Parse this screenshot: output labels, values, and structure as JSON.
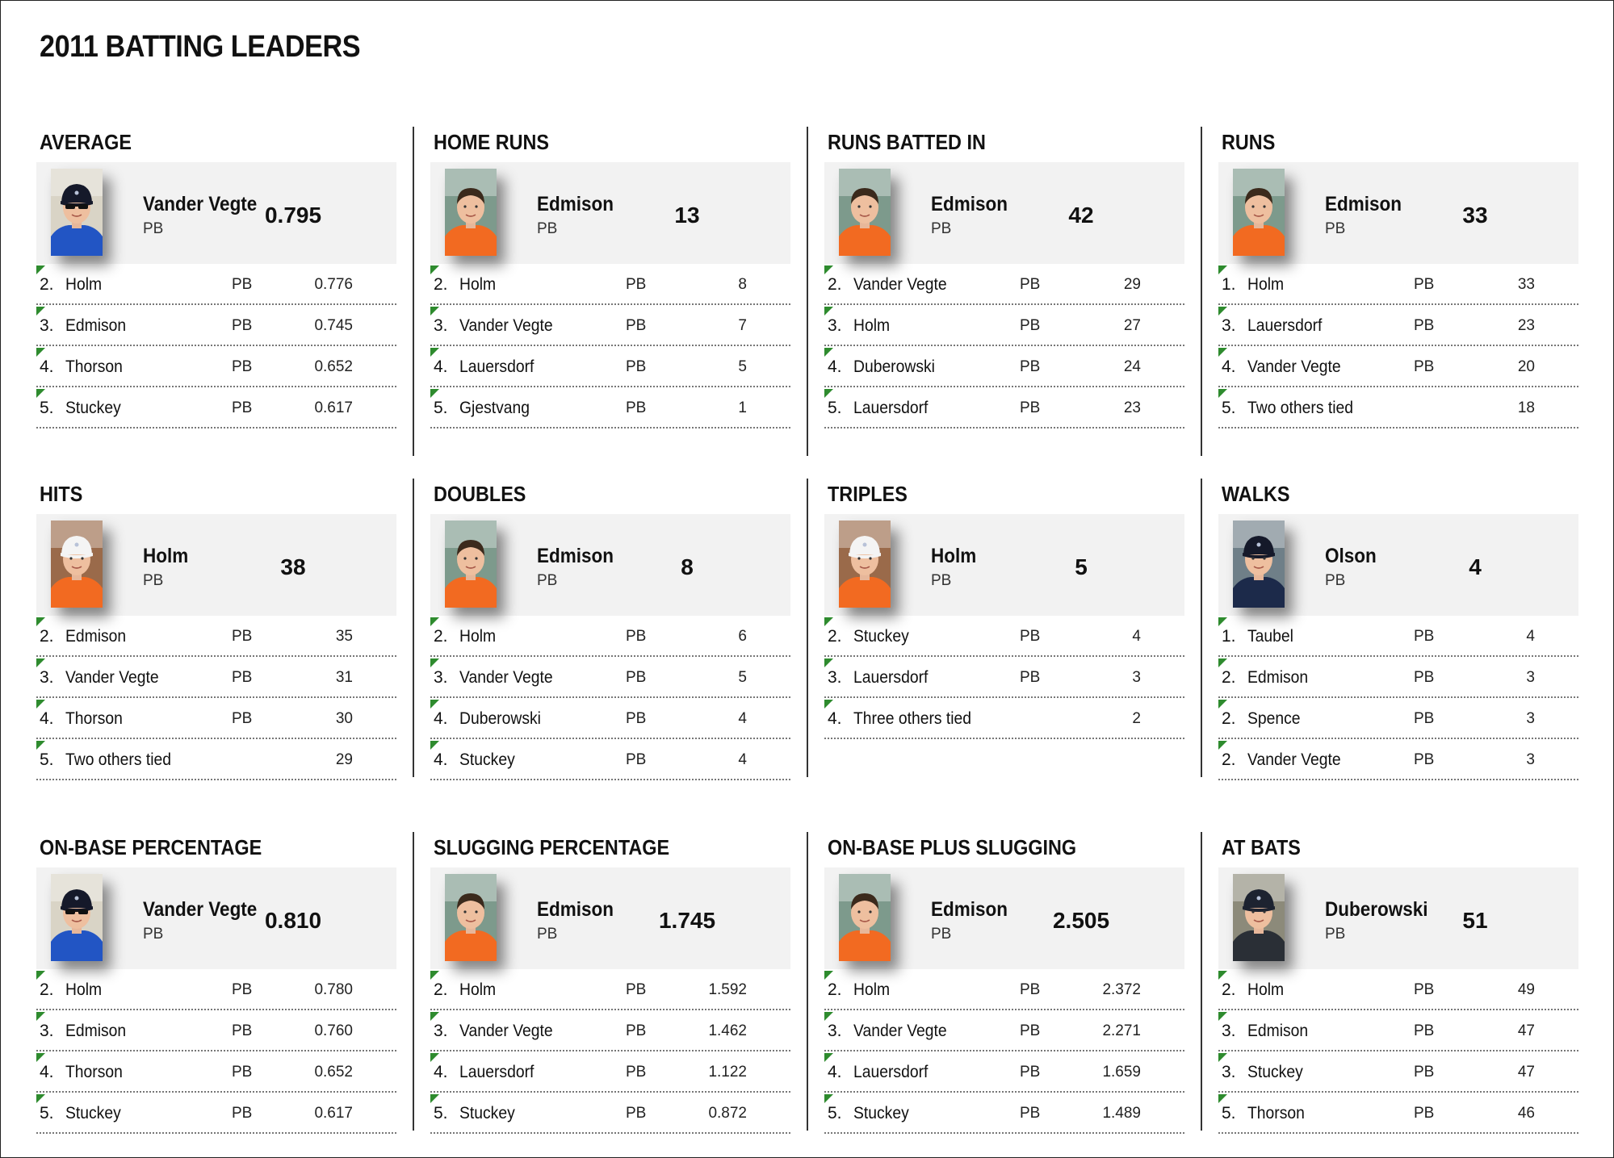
{
  "title": "2011 BATTING LEADERS",
  "categories": [
    {
      "title": "AVERAGE",
      "leader": {
        "name": "Vander Vegte",
        "team": "PB",
        "value": "0.795",
        "photo": "dark-cap-sunglasses-blue-shirt"
      },
      "rows": [
        {
          "rank": "2.",
          "name": "Holm",
          "team": "PB",
          "value": "0.776"
        },
        {
          "rank": "3.",
          "name": "Edmison",
          "team": "PB",
          "value": "0.745"
        },
        {
          "rank": "4.",
          "name": "Thorson",
          "team": "PB",
          "value": "0.652"
        },
        {
          "rank": "5.",
          "name": "Stuckey",
          "team": "PB",
          "value": "0.617"
        }
      ]
    },
    {
      "title": "HOME RUNS",
      "leader": {
        "name": "Edmison",
        "team": "PB",
        "value": "13",
        "photo": "bare-head-orange-shirt"
      },
      "rows": [
        {
          "rank": "2.",
          "name": "Holm",
          "team": "PB",
          "value": "8"
        },
        {
          "rank": "3.",
          "name": "Vander Vegte",
          "team": "PB",
          "value": "7"
        },
        {
          "rank": "4.",
          "name": "Lauersdorf",
          "team": "PB",
          "value": "5"
        },
        {
          "rank": "5.",
          "name": "Gjestvang",
          "team": "PB",
          "value": "1"
        }
      ]
    },
    {
      "title": "RUNS BATTED IN",
      "leader": {
        "name": "Edmison",
        "team": "PB",
        "value": "42",
        "photo": "bare-head-orange-shirt"
      },
      "rows": [
        {
          "rank": "2.",
          "name": "Vander Vegte",
          "team": "PB",
          "value": "29"
        },
        {
          "rank": "3.",
          "name": "Holm",
          "team": "PB",
          "value": "27"
        },
        {
          "rank": "4.",
          "name": "Duberowski",
          "team": "PB",
          "value": "24"
        },
        {
          "rank": "5.",
          "name": "Lauersdorf",
          "team": "PB",
          "value": "23"
        }
      ]
    },
    {
      "title": "RUNS",
      "leader": {
        "name": "Edmison",
        "team": "PB",
        "value": "33",
        "photo": "bare-head-orange-shirt"
      },
      "rows": [
        {
          "rank": "1.",
          "name": "Holm",
          "team": "PB",
          "value": "33"
        },
        {
          "rank": "3.",
          "name": "Lauersdorf",
          "team": "PB",
          "value": "23"
        },
        {
          "rank": "4.",
          "name": "Vander Vegte",
          "team": "PB",
          "value": "20"
        },
        {
          "rank": "5.",
          "name": "Two others tied",
          "team": "",
          "value": "18"
        }
      ]
    },
    {
      "title": "HITS",
      "leader": {
        "name": "Holm",
        "team": "PB",
        "value": "38",
        "photo": "white-cap-orange-shirt"
      },
      "rows": [
        {
          "rank": "2.",
          "name": "Edmison",
          "team": "PB",
          "value": "35"
        },
        {
          "rank": "3.",
          "name": "Vander Vegte",
          "team": "PB",
          "value": "31"
        },
        {
          "rank": "4.",
          "name": "Thorson",
          "team": "PB",
          "value": "30"
        },
        {
          "rank": "5.",
          "name": "Two others tied",
          "team": "",
          "value": "29"
        }
      ]
    },
    {
      "title": "DOUBLES",
      "leader": {
        "name": "Edmison",
        "team": "PB",
        "value": "8",
        "photo": "bare-head-orange-shirt"
      },
      "rows": [
        {
          "rank": "2.",
          "name": "Holm",
          "team": "PB",
          "value": "6"
        },
        {
          "rank": "3.",
          "name": "Vander Vegte",
          "team": "PB",
          "value": "5"
        },
        {
          "rank": "4.",
          "name": "Duberowski",
          "team": "PB",
          "value": "4"
        },
        {
          "rank": "4.",
          "name": "Stuckey",
          "team": "PB",
          "value": "4"
        }
      ]
    },
    {
      "title": "TRIPLES",
      "leader": {
        "name": "Holm",
        "team": "PB",
        "value": "5",
        "photo": "white-cap-orange-shirt"
      },
      "rows": [
        {
          "rank": "2.",
          "name": "Stuckey",
          "team": "PB",
          "value": "4"
        },
        {
          "rank": "3.",
          "name": "Lauersdorf",
          "team": "PB",
          "value": "3"
        },
        {
          "rank": "4.",
          "name": "Three others tied",
          "team": "",
          "value": "2"
        }
      ]
    },
    {
      "title": "WALKS",
      "leader": {
        "name": "Olson",
        "team": "PB",
        "value": "4",
        "photo": "dark-cap-navy-shirt"
      },
      "rows": [
        {
          "rank": "1.",
          "name": "Taubel",
          "team": "PB",
          "value": "4"
        },
        {
          "rank": "2.",
          "name": "Edmison",
          "team": "PB",
          "value": "3"
        },
        {
          "rank": "2.",
          "name": "Spence",
          "team": "PB",
          "value": "3"
        },
        {
          "rank": "2.",
          "name": "Vander Vegte",
          "team": "PB",
          "value": "3"
        }
      ]
    },
    {
      "title": "ON-BASE PERCENTAGE",
      "leader": {
        "name": "Vander Vegte",
        "team": "PB",
        "value": "0.810",
        "photo": "dark-cap-sunglasses-blue-shirt"
      },
      "rows": [
        {
          "rank": "2.",
          "name": "Holm",
          "team": "PB",
          "value": "0.780"
        },
        {
          "rank": "3.",
          "name": "Edmison",
          "team": "PB",
          "value": "0.760"
        },
        {
          "rank": "4.",
          "name": "Thorson",
          "team": "PB",
          "value": "0.652"
        },
        {
          "rank": "5.",
          "name": "Stuckey",
          "team": "PB",
          "value": "0.617"
        }
      ]
    },
    {
      "title": "SLUGGING PERCENTAGE",
      "leader": {
        "name": "Edmison",
        "team": "PB",
        "value": "1.745",
        "photo": "bare-head-orange-shirt"
      },
      "rows": [
        {
          "rank": "2.",
          "name": "Holm",
          "team": "PB",
          "value": "1.592"
        },
        {
          "rank": "3.",
          "name": "Vander Vegte",
          "team": "PB",
          "value": "1.462"
        },
        {
          "rank": "4.",
          "name": "Lauersdorf",
          "team": "PB",
          "value": "1.122"
        },
        {
          "rank": "5.",
          "name": "Stuckey",
          "team": "PB",
          "value": "0.872"
        }
      ]
    },
    {
      "title": "ON-BASE PLUS SLUGGING",
      "leader": {
        "name": "Edmison",
        "team": "PB",
        "value": "2.505",
        "photo": "bare-head-orange-shirt"
      },
      "rows": [
        {
          "rank": "2.",
          "name": "Holm",
          "team": "PB",
          "value": "2.372"
        },
        {
          "rank": "3.",
          "name": "Vander Vegte",
          "team": "PB",
          "value": "2.271"
        },
        {
          "rank": "4.",
          "name": "Lauersdorf",
          "team": "PB",
          "value": "1.659"
        },
        {
          "rank": "5.",
          "name": "Stuckey",
          "team": "PB",
          "value": "1.489"
        }
      ]
    },
    {
      "title": "AT BATS",
      "leader": {
        "name": "Duberowski",
        "team": "PB",
        "value": "51",
        "photo": "dark-cap-dark-shirt"
      },
      "rows": [
        {
          "rank": "2.",
          "name": "Holm",
          "team": "PB",
          "value": "49"
        },
        {
          "rank": "3.",
          "name": "Edmison",
          "team": "PB",
          "value": "47"
        },
        {
          "rank": "3.",
          "name": "Stuckey",
          "team": "PB",
          "value": "47"
        },
        {
          "rank": "5.",
          "name": "Thorson",
          "team": "PB",
          "value": "46"
        }
      ]
    }
  ]
}
